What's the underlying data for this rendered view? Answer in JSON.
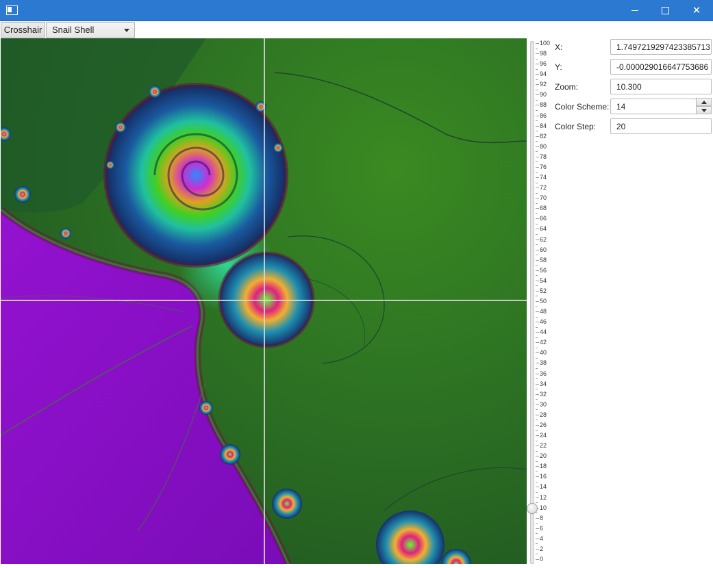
{
  "toolbar": {
    "crosshair_label": "Crosshair",
    "preset_select": {
      "selected": "Snail Shell"
    }
  },
  "icons": {
    "app": "window-icon",
    "minimize": "minimize-icon",
    "maximize": "maximize-icon",
    "close": "close-icon",
    "dropdown": "chevron-down-icon",
    "spin_up": "arrow-up-icon",
    "spin_down": "arrow-down-icon"
  },
  "titlebar": {
    "close_glyph": "✕"
  },
  "zoom_slider": {
    "min": 0,
    "max": 100,
    "value": 10,
    "labels": [
      "100",
      "98",
      "96",
      "94",
      "92",
      "90",
      "88",
      "86",
      "84",
      "82",
      "80",
      "78",
      "76",
      "74",
      "72",
      "70",
      "68",
      "66",
      "64",
      "62",
      "60",
      "58",
      "56",
      "54",
      "52",
      "50",
      "48",
      "46",
      "44",
      "42",
      "40",
      "38",
      "36",
      "34",
      "32",
      "30",
      "28",
      "26",
      "24",
      "22",
      "20",
      "18",
      "16",
      "14",
      "12",
      "10",
      "8",
      "6",
      "4",
      "2",
      "0"
    ]
  },
  "form": {
    "x": {
      "label": "X:",
      "value": "1.7497219297423385713"
    },
    "y": {
      "label": "Y:",
      "value": "-0.000029016647753686"
    },
    "zoom": {
      "label": "Zoom:",
      "value": "10.300"
    },
    "color_scheme": {
      "label": "Color Scheme:",
      "value": "14"
    },
    "color_step": {
      "label": "Color Step:",
      "value": "20"
    }
  },
  "colors": {
    "titlebar": "#2b79d0",
    "fractal_background": "#2a6a21",
    "fractal_purple": "#8a10c8",
    "crosshair": "#dcdcdc"
  }
}
